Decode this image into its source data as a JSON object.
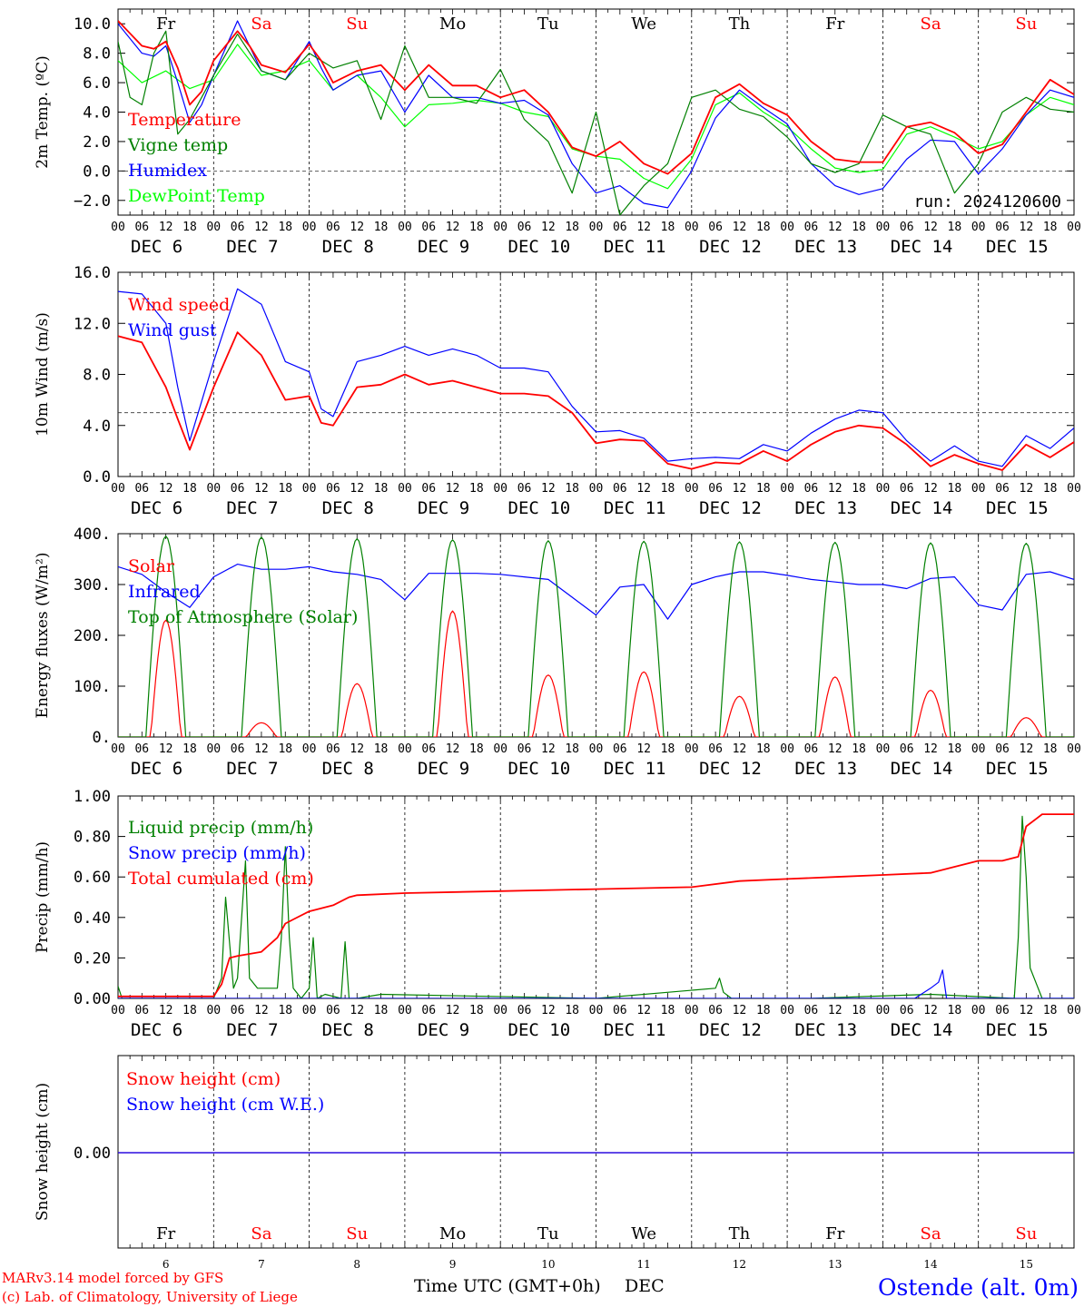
{
  "chart_data": [
    {
      "type": "line",
      "ylabel": "2m Temp. (ºC)",
      "ylim": [
        -3.0,
        11.0
      ],
      "yticks": [
        -2.0,
        0.0,
        2.0,
        4.0,
        6.0,
        8.0,
        10.0
      ],
      "ytick_labels": [
        "−2.0",
        "0.0",
        "2.0",
        "4.0",
        "6.0",
        "8.0",
        "10.0"
      ],
      "reference_line": 0.0,
      "run_label": "run: 2024120600",
      "legend": [
        "Temperature",
        "Vigne temp",
        "Humidex",
        "DewPoint Temp"
      ],
      "series": [
        {
          "name": "Temperature",
          "color": "#ff0000",
          "x": [
            0,
            6,
            9,
            12,
            15,
            18,
            21,
            24,
            30,
            33,
            36,
            42,
            48,
            51,
            54,
            60,
            66,
            72,
            78,
            84,
            90,
            96,
            102,
            108,
            114,
            120,
            126,
            132,
            138,
            144,
            150,
            156,
            162,
            168,
            174,
            180,
            186,
            192,
            198,
            204,
            210,
            216,
            222,
            228,
            234,
            240
          ],
          "values": [
            10.2,
            8.5,
            8.3,
            8.8,
            7.0,
            4.5,
            5.4,
            7.5,
            9.5,
            8.5,
            7.2,
            6.7,
            8.6,
            7.5,
            6.0,
            6.8,
            7.2,
            5.5,
            7.2,
            5.8,
            5.8,
            5.0,
            5.5,
            4.0,
            1.6,
            1.0,
            2.0,
            0.5,
            -0.2,
            1.2,
            5.0,
            5.9,
            4.6,
            3.8,
            2.0,
            0.8,
            0.6,
            0.6,
            3.0,
            3.3,
            2.6,
            1.2,
            1.8,
            4.0,
            6.2,
            5.2
          ]
        },
        {
          "name": "Vigne temp",
          "color": "#008000",
          "x": [
            0,
            3,
            6,
            9,
            12,
            15,
            18,
            21,
            24,
            30,
            36,
            42,
            48,
            54,
            60,
            66,
            72,
            78,
            84,
            90,
            96,
            102,
            108,
            114,
            120,
            126,
            132,
            138,
            144,
            150,
            156,
            162,
            168,
            174,
            180,
            186,
            192,
            198,
            204,
            210,
            216,
            222,
            228,
            234,
            240
          ],
          "values": [
            8.8,
            5.0,
            4.5,
            8.0,
            9.5,
            2.5,
            3.5,
            5.0,
            6.5,
            9.3,
            6.8,
            6.2,
            8.0,
            7.0,
            7.5,
            3.5,
            8.5,
            5.0,
            5.0,
            4.6,
            6.9,
            3.5,
            2.0,
            -1.5,
            4.0,
            -3.0,
            -1.0,
            0.5,
            5.0,
            5.5,
            4.2,
            3.7,
            2.3,
            0.5,
            -0.1,
            0.5,
            3.8,
            3.0,
            2.5,
            -1.5,
            0.5,
            4.0,
            5.0,
            4.2,
            4.0
          ]
        },
        {
          "name": "Humidex",
          "color": "#0000ff",
          "x": [
            0,
            6,
            9,
            12,
            15,
            18,
            21,
            24,
            30,
            33,
            36,
            42,
            48,
            51,
            54,
            60,
            66,
            72,
            78,
            84,
            90,
            96,
            102,
            108,
            114,
            120,
            126,
            132,
            138,
            144,
            150,
            156,
            162,
            168,
            174,
            180,
            186,
            192,
            198,
            204,
            210,
            216,
            222,
            228,
            234,
            240
          ],
          "values": [
            10.0,
            8.0,
            7.8,
            8.5,
            6.0,
            3.3,
            4.5,
            6.5,
            10.2,
            8.5,
            6.8,
            6.2,
            8.8,
            7.0,
            5.5,
            6.5,
            6.8,
            4.0,
            6.5,
            5.0,
            5.0,
            4.6,
            4.8,
            3.8,
            0.5,
            -1.5,
            -1.0,
            -2.2,
            -2.5,
            0.0,
            3.6,
            5.5,
            4.3,
            3.2,
            0.5,
            -1.0,
            -1.6,
            -1.2,
            0.8,
            2.1,
            2.0,
            -0.2,
            1.5,
            3.8,
            5.5,
            5.0
          ]
        },
        {
          "name": "DewPoint Temp",
          "color": "#00ff00",
          "x": [
            0,
            6,
            12,
            18,
            24,
            30,
            36,
            42,
            48,
            54,
            60,
            66,
            72,
            78,
            84,
            90,
            96,
            102,
            108,
            114,
            120,
            126,
            132,
            138,
            144,
            150,
            156,
            162,
            168,
            174,
            180,
            186,
            192,
            198,
            204,
            210,
            216,
            222,
            228,
            234,
            240
          ],
          "values": [
            7.5,
            6.0,
            6.8,
            5.6,
            6.2,
            8.6,
            6.5,
            6.8,
            7.5,
            5.5,
            6.5,
            5.0,
            3.0,
            4.5,
            4.6,
            4.8,
            4.6,
            4.0,
            3.7,
            1.5,
            1.0,
            0.8,
            -0.5,
            -1.2,
            0.8,
            4.5,
            5.3,
            4.0,
            3.0,
            1.5,
            0.2,
            -0.1,
            0.1,
            2.5,
            3.0,
            2.3,
            1.5,
            2.0,
            3.8,
            5.0,
            4.5
          ]
        }
      ]
    },
    {
      "type": "line",
      "ylabel": "10m Wind (m/s)",
      "ylim": [
        0.0,
        16.0
      ],
      "yticks": [
        0.0,
        4.0,
        8.0,
        12.0,
        16.0
      ],
      "ytick_labels": [
        "0.0",
        "4.0",
        "8.0",
        "12.0",
        "16.0"
      ],
      "reference_line": 5.0,
      "legend": [
        "Wind speed",
        "Wind gust"
      ],
      "series": [
        {
          "name": "Wind speed",
          "color": "#ff0000",
          "x": [
            0,
            6,
            12,
            15,
            18,
            24,
            30,
            36,
            42,
            48,
            51,
            54,
            60,
            66,
            72,
            78,
            84,
            90,
            96,
            102,
            108,
            114,
            120,
            126,
            132,
            138,
            144,
            150,
            156,
            162,
            168,
            174,
            180,
            186,
            192,
            198,
            204,
            210,
            216,
            222,
            228,
            234,
            240
          ],
          "values": [
            11.0,
            10.5,
            7.0,
            4.5,
            2.1,
            7.0,
            11.3,
            9.5,
            6.0,
            6.3,
            4.2,
            4.0,
            7.0,
            7.2,
            8.0,
            7.2,
            7.5,
            7.0,
            6.5,
            6.5,
            6.3,
            5.0,
            2.6,
            2.9,
            2.8,
            1.0,
            0.6,
            1.1,
            1.0,
            2.0,
            1.2,
            2.5,
            3.5,
            4.0,
            3.8,
            2.5,
            0.8,
            1.7,
            1.0,
            0.5,
            2.5,
            1.5,
            2.7
          ]
        },
        {
          "name": "Wind gust",
          "color": "#0000ff",
          "x": [
            0,
            6,
            12,
            15,
            18,
            24,
            30,
            36,
            42,
            48,
            51,
            54,
            60,
            66,
            72,
            78,
            84,
            90,
            96,
            102,
            108,
            114,
            120,
            126,
            132,
            138,
            144,
            150,
            156,
            162,
            168,
            174,
            180,
            186,
            192,
            198,
            204,
            210,
            216,
            222,
            228,
            234,
            240
          ],
          "values": [
            14.5,
            14.3,
            12.0,
            7.0,
            2.8,
            9.0,
            14.7,
            13.5,
            9.0,
            8.2,
            5.3,
            4.7,
            9.0,
            9.5,
            10.2,
            9.5,
            10.0,
            9.5,
            8.5,
            8.5,
            8.2,
            5.5,
            3.5,
            3.6,
            3.0,
            1.2,
            1.4,
            1.5,
            1.4,
            2.5,
            2.0,
            3.4,
            4.5,
            5.2,
            5.0,
            2.8,
            1.2,
            2.4,
            1.2,
            0.8,
            3.2,
            2.2,
            3.8
          ]
        }
      ]
    },
    {
      "type": "line",
      "ylabel": "Energy fluxes (W/m²)",
      "ylim": [
        0,
        400
      ],
      "yticks": [
        0,
        100,
        200,
        300,
        400
      ],
      "ytick_labels": [
        "0.",
        "100.",
        "200.",
        "300.",
        "400."
      ],
      "legend": [
        "Solar",
        "Infrared",
        "Top of Atmosphere (Solar)"
      ],
      "series": [
        {
          "name": "Solar",
          "color": "#ff0000",
          "day_peaks": [
            230,
            28,
            105,
            248,
            122,
            128,
            80,
            118,
            92,
            38
          ]
        },
        {
          "name": "Infrared",
          "color": "#0000ff",
          "x": [
            0,
            6,
            12,
            18,
            24,
            30,
            36,
            42,
            48,
            54,
            60,
            66,
            72,
            78,
            84,
            90,
            96,
            102,
            108,
            114,
            120,
            126,
            132,
            138,
            144,
            150,
            156,
            162,
            168,
            174,
            180,
            186,
            192,
            198,
            204,
            210,
            216,
            222,
            228,
            234,
            240
          ],
          "values": [
            335,
            320,
            285,
            255,
            315,
            340,
            330,
            330,
            335,
            325,
            320,
            310,
            270,
            322,
            322,
            322,
            320,
            315,
            310,
            275,
            240,
            295,
            300,
            232,
            300,
            315,
            325,
            325,
            318,
            310,
            305,
            300,
            300,
            292,
            312,
            315,
            260,
            250,
            320,
            325,
            310
          ]
        },
        {
          "name": "Top of Atmosphere (Solar)",
          "color": "#008000",
          "day_peaks": [
            395,
            393,
            390,
            388,
            386,
            385,
            384,
            383,
            382,
            381
          ]
        }
      ]
    },
    {
      "type": "line",
      "ylabel": "Precip (mm/h)",
      "ylim": [
        0.0,
        1.0
      ],
      "yticks": [
        0.0,
        0.2,
        0.4,
        0.6,
        0.8,
        1.0
      ],
      "ytick_labels": [
        "0.00",
        "0.20",
        "0.40",
        "0.60",
        "0.80",
        "1.00"
      ],
      "legend": [
        "Liquid precip (mm/h)",
        "Snow precip (mm/h)",
        "Total cumulated (cm)"
      ],
      "series": [
        {
          "name": "Liquid precip (mm/h)",
          "color": "#008000",
          "x": [
            0,
            1,
            3,
            24,
            26,
            27,
            29,
            30,
            32,
            33,
            35,
            40,
            41,
            42,
            43,
            44,
            46,
            48,
            49,
            50,
            52,
            56,
            57,
            58,
            60,
            66,
            120,
            150,
            151,
            152,
            154,
            174,
            204,
            225,
            226,
            227,
            228,
            229,
            232,
            240
          ],
          "values": [
            0.06,
            0.0,
            0.0,
            0.0,
            0.1,
            0.5,
            0.05,
            0.1,
            0.68,
            0.1,
            0.05,
            0.05,
            0.3,
            0.75,
            0.3,
            0.05,
            0.0,
            0.05,
            0.3,
            0.0,
            0.02,
            0.0,
            0.28,
            0.0,
            0.0,
            0.02,
            0.0,
            0.05,
            0.1,
            0.03,
            0.0,
            0.0,
            0.02,
            0.0,
            0.3,
            0.9,
            0.6,
            0.15,
            0.0,
            0.0
          ]
        },
        {
          "name": "Snow precip (mm/h)",
          "color": "#0000ff",
          "x": [
            0,
            200,
            204,
            206,
            207,
            208,
            212,
            240
          ],
          "values": [
            0.0,
            0.0,
            0.05,
            0.08,
            0.14,
            0.0,
            0.0,
            0.0
          ]
        },
        {
          "name": "Total cumulated (cm)",
          "color": "#ff0000",
          "x": [
            0,
            24,
            26,
            28,
            30,
            36,
            40,
            42,
            44,
            48,
            54,
            58,
            60,
            72,
            96,
            120,
            144,
            156,
            168,
            180,
            192,
            204,
            208,
            216,
            222,
            226,
            228,
            232,
            240
          ],
          "values": [
            0.01,
            0.01,
            0.07,
            0.2,
            0.21,
            0.23,
            0.3,
            0.37,
            0.39,
            0.43,
            0.46,
            0.5,
            0.51,
            0.52,
            0.53,
            0.54,
            0.55,
            0.58,
            0.59,
            0.6,
            0.61,
            0.62,
            0.64,
            0.68,
            0.68,
            0.7,
            0.85,
            0.91,
            0.91
          ]
        }
      ]
    },
    {
      "type": "line",
      "ylabel": "Snow height (cm)",
      "ytick_labels": [
        "0.00"
      ],
      "legend": [
        "Snow height (cm)",
        "Snow height (cm W.E.)"
      ],
      "series": [
        {
          "name": "Snow height (cm)",
          "color": "#ff0000",
          "x": [
            0,
            240
          ],
          "values": [
            0.0,
            0.0
          ]
        },
        {
          "name": "Snow height (cm W.E.)",
          "color": "#0000ff",
          "x": [
            0,
            240
          ],
          "values": [
            0.0,
            0.0
          ]
        }
      ]
    }
  ],
  "x_axis": {
    "hour_labels": [
      "00",
      "06",
      "12",
      "18"
    ],
    "final_hour_label": "00",
    "date_labels": [
      "DEC  6",
      "DEC  7",
      "DEC  8",
      "DEC  9",
      "DEC 10",
      "DEC 11",
      "DEC 12",
      "DEC 13",
      "DEC 14",
      "DEC 15"
    ],
    "day_names": [
      "Fr",
      "Sa",
      "Su",
      "Mo",
      "Tu",
      "We",
      "Th",
      "Fr",
      "Sa",
      "Su"
    ],
    "day_name_colors": [
      "#000000",
      "#ff0000",
      "#ff0000",
      "#000000",
      "#000000",
      "#000000",
      "#000000",
      "#000000",
      "#ff0000",
      "#ff0000"
    ],
    "day_numbers": [
      "6",
      "7",
      "8",
      "9",
      "10",
      "11",
      "12",
      "13",
      "14",
      "15"
    ],
    "xlabel": "Time UTC (GMT+0h)",
    "month_label": "DEC"
  },
  "footer": {
    "model_line": "MARv3.14 model forced by GFS",
    "credit_line": "(c) Lab. of Climatology, University of Liege",
    "station": "Ostende (alt. 0m)"
  }
}
